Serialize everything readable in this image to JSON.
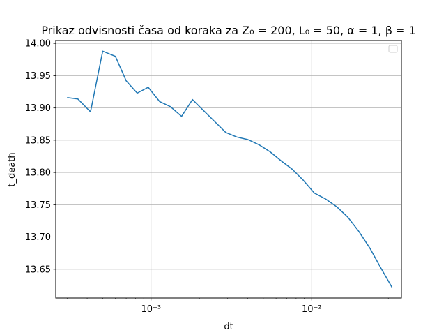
{
  "chart_data": {
    "type": "line",
    "title": "Prikaz odvisnosti časa od koraka za Z₀ = 200, L₀ = 50, α = 1, β = 1",
    "xlabel": "dt",
    "ylabel": "t_death",
    "xscale": "log",
    "xlim": [
      0.000255,
      0.0362
    ],
    "ylim": [
      13.6055,
      14.0045
    ],
    "grid": true,
    "legend": "upper right (empty)",
    "x_ticks": [
      {
        "value": 0.001,
        "label": "10⁻³"
      },
      {
        "value": 0.01,
        "label": "10⁻²"
      }
    ],
    "y_ticks": [
      13.65,
      13.7,
      13.75,
      13.8,
      13.85,
      13.9,
      13.95,
      14.0
    ],
    "color": "#1f77b4",
    "series": [
      {
        "x": [
          0.0003,
          0.00035,
          0.00042,
          0.0005,
          0.0006,
          0.0007,
          0.00082,
          0.00096,
          0.00113,
          0.00132,
          0.00155,
          0.00181,
          0.00212,
          0.00249,
          0.00292,
          0.00342,
          0.00401,
          0.0047,
          0.00551,
          0.00646,
          0.00757,
          0.00887,
          0.0104,
          0.01219,
          0.01429,
          0.01675,
          0.01963,
          0.02301,
          0.02697,
          0.03162
        ],
        "y": [
          13.916,
          13.914,
          13.894,
          13.988,
          13.98,
          13.942,
          13.923,
          13.932,
          13.91,
          13.902,
          13.887,
          13.913,
          13.896,
          13.879,
          13.862,
          13.855,
          13.851,
          13.843,
          13.832,
          13.818,
          13.805,
          13.788,
          13.768,
          13.759,
          13.747,
          13.731,
          13.709,
          13.683,
          13.652,
          13.622
        ]
      }
    ]
  }
}
